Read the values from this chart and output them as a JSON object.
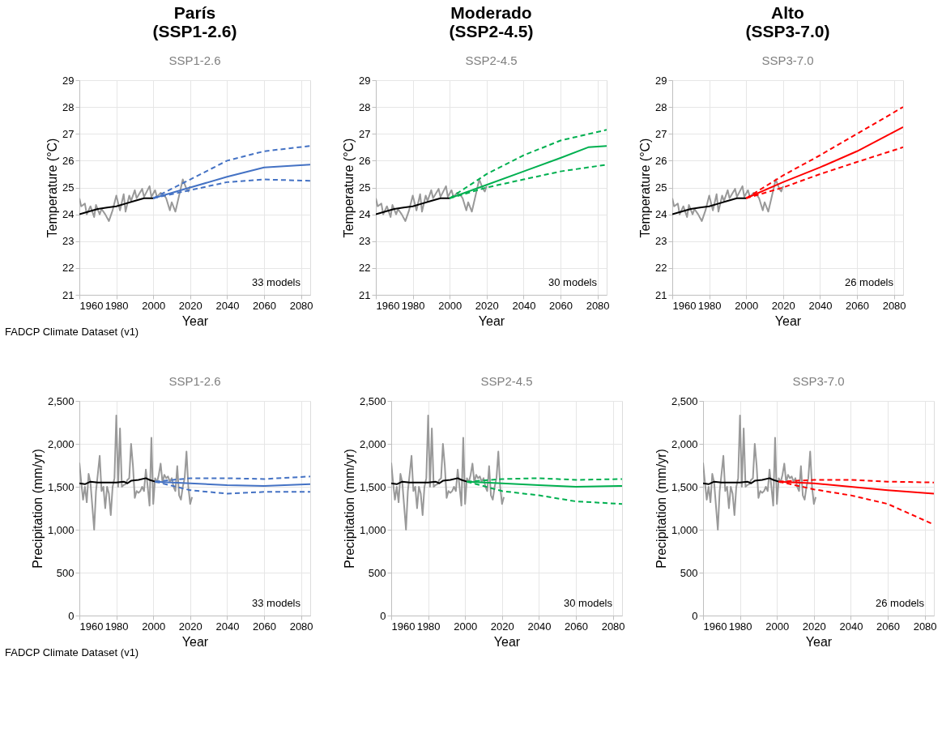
{
  "chart_data": [
    {
      "type": "line",
      "title": "París\n(SSP1-2.6)",
      "subtitle": "SSP1-2.6",
      "xlabel": "Year",
      "ylabel": "Temperature (°C)",
      "xlim": [
        1960,
        2085
      ],
      "xticks": [
        1960,
        1980,
        2000,
        2020,
        2040,
        2060,
        2080
      ],
      "ylim": [
        21,
        29
      ],
      "yticks": [
        21,
        22,
        23,
        24,
        25,
        26,
        27,
        28,
        29
      ],
      "grid": true,
      "legend": false,
      "annotations": [
        "33 models",
        "FADCP Climate Dataset (v1)"
      ],
      "series": [
        {
          "color": "#999999",
          "line_style": "solid",
          "x": [
            1960,
            1961,
            1963,
            1964,
            1966,
            1968,
            1969,
            1971,
            1972,
            1974,
            1976,
            1978,
            1980,
            1982,
            1984,
            1985,
            1987,
            1988,
            1990,
            1991,
            1994,
            1995,
            1998,
            1999,
            2001,
            2002,
            2004,
            2006,
            2007,
            2009,
            2010,
            2012,
            2014,
            2016,
            2018,
            2019,
            2020
          ],
          "values": [
            24.6,
            24.3,
            24.4,
            24.0,
            24.3,
            23.9,
            24.35,
            24.0,
            24.2,
            24.0,
            23.75,
            24.15,
            24.7,
            24.15,
            24.75,
            24.1,
            24.7,
            24.5,
            24.9,
            24.6,
            24.95,
            24.65,
            25.05,
            24.65,
            24.9,
            24.65,
            24.8,
            24.7,
            24.6,
            24.15,
            24.45,
            24.1,
            24.7,
            25.3,
            24.95,
            24.85,
            25.05
          ]
        },
        {
          "color": "#000000",
          "line_style": "solid",
          "x": [
            1960,
            1965,
            1970,
            1975,
            1980,
            1985,
            1990,
            1995,
            2000
          ],
          "values": [
            24.0,
            24.1,
            24.2,
            24.25,
            24.3,
            24.4,
            24.5,
            24.6,
            24.6
          ]
        },
        {
          "color": "#4472c4",
          "line_style": "solid",
          "x": [
            2000,
            2020,
            2040,
            2060,
            2085
          ],
          "values": [
            24.6,
            25.0,
            25.4,
            25.75,
            25.85
          ]
        },
        {
          "color": "#4472c4",
          "line_style": "dashed",
          "x": [
            2000,
            2020,
            2040,
            2060,
            2085
          ],
          "values": [
            24.6,
            25.3,
            26.0,
            26.35,
            26.55
          ]
        },
        {
          "color": "#4472c4",
          "line_style": "dashed",
          "x": [
            2000,
            2020,
            2040,
            2060,
            2085
          ],
          "values": [
            24.6,
            24.9,
            25.2,
            25.3,
            25.25
          ]
        }
      ]
    },
    {
      "type": "line",
      "title": "Moderado\n(SSP2-4.5)",
      "subtitle": "SSP2-4.5",
      "xlabel": "Year",
      "ylabel": "Temperature (°C)",
      "xlim": [
        1960,
        2085
      ],
      "xticks": [
        1960,
        1980,
        2000,
        2020,
        2040,
        2060,
        2080
      ],
      "ylim": [
        21,
        29
      ],
      "yticks": [
        21,
        22,
        23,
        24,
        25,
        26,
        27,
        28,
        29
      ],
      "grid": true,
      "legend": false,
      "annotations": [
        "30 models"
      ],
      "series": [
        {
          "color": "#999999",
          "line_style": "solid",
          "x": [
            1960,
            1961,
            1963,
            1964,
            1966,
            1968,
            1969,
            1971,
            1972,
            1974,
            1976,
            1978,
            1980,
            1982,
            1984,
            1985,
            1987,
            1988,
            1990,
            1991,
            1994,
            1995,
            1998,
            1999,
            2001,
            2002,
            2004,
            2006,
            2007,
            2009,
            2010,
            2012,
            2014,
            2016,
            2018,
            2019,
            2020
          ],
          "values": [
            24.6,
            24.3,
            24.4,
            24.0,
            24.3,
            23.9,
            24.35,
            24.0,
            24.2,
            24.0,
            23.75,
            24.15,
            24.7,
            24.15,
            24.75,
            24.1,
            24.7,
            24.5,
            24.9,
            24.6,
            24.95,
            24.65,
            25.05,
            24.65,
            24.9,
            24.65,
            24.8,
            24.7,
            24.6,
            24.15,
            24.45,
            24.1,
            24.7,
            25.3,
            24.95,
            24.85,
            25.05
          ]
        },
        {
          "color": "#000000",
          "line_style": "solid",
          "x": [
            1960,
            1965,
            1970,
            1975,
            1980,
            1985,
            1990,
            1995,
            2000
          ],
          "values": [
            24.0,
            24.1,
            24.2,
            24.25,
            24.3,
            24.4,
            24.5,
            24.6,
            24.6
          ]
        },
        {
          "color": "#00b050",
          "line_style": "solid",
          "x": [
            2000,
            2020,
            2040,
            2060,
            2075,
            2085
          ],
          "values": [
            24.6,
            25.1,
            25.6,
            26.1,
            26.5,
            26.55
          ]
        },
        {
          "color": "#00b050",
          "line_style": "dashed",
          "x": [
            2000,
            2020,
            2040,
            2060,
            2085
          ],
          "values": [
            24.6,
            25.5,
            26.2,
            26.75,
            27.15
          ]
        },
        {
          "color": "#00b050",
          "line_style": "dashed",
          "x": [
            2000,
            2020,
            2040,
            2060,
            2085
          ],
          "values": [
            24.6,
            25.0,
            25.3,
            25.6,
            25.85
          ]
        }
      ]
    },
    {
      "type": "line",
      "title": "Alto\n(SSP3-7.0)",
      "subtitle": "SSP3-7.0",
      "xlabel": "Year",
      "ylabel": "Temperature (°C)",
      "xlim": [
        1960,
        2085
      ],
      "xticks": [
        1960,
        1980,
        2000,
        2020,
        2040,
        2060,
        2080
      ],
      "ylim": [
        21,
        29
      ],
      "yticks": [
        21,
        22,
        23,
        24,
        25,
        26,
        27,
        28,
        29
      ],
      "grid": true,
      "legend": false,
      "annotations": [
        "26 models"
      ],
      "series": [
        {
          "color": "#999999",
          "line_style": "solid",
          "x": [
            1960,
            1961,
            1963,
            1964,
            1966,
            1968,
            1969,
            1971,
            1972,
            1974,
            1976,
            1978,
            1980,
            1982,
            1984,
            1985,
            1987,
            1988,
            1990,
            1991,
            1994,
            1995,
            1998,
            1999,
            2001,
            2002,
            2004,
            2006,
            2007,
            2009,
            2010,
            2012,
            2014,
            2016,
            2018,
            2019,
            2020
          ],
          "values": [
            24.6,
            24.3,
            24.4,
            24.0,
            24.3,
            23.9,
            24.35,
            24.0,
            24.2,
            24.0,
            23.75,
            24.15,
            24.7,
            24.15,
            24.75,
            24.1,
            24.7,
            24.5,
            24.9,
            24.6,
            24.95,
            24.65,
            25.05,
            24.65,
            24.9,
            24.65,
            24.8,
            24.7,
            24.6,
            24.15,
            24.45,
            24.1,
            24.7,
            25.3,
            24.95,
            24.85,
            25.05
          ]
        },
        {
          "color": "#000000",
          "line_style": "solid",
          "x": [
            1960,
            1965,
            1970,
            1975,
            1980,
            1985,
            1990,
            1995,
            2000
          ],
          "values": [
            24.0,
            24.1,
            24.2,
            24.25,
            24.3,
            24.4,
            24.5,
            24.6,
            24.6
          ]
        },
        {
          "color": "#ff0000",
          "line_style": "solid",
          "x": [
            2000,
            2020,
            2040,
            2060,
            2085
          ],
          "values": [
            24.6,
            25.2,
            25.75,
            26.35,
            27.25
          ]
        },
        {
          "color": "#ff0000",
          "line_style": "dashed",
          "x": [
            2000,
            2020,
            2040,
            2060,
            2085
          ],
          "values": [
            24.6,
            25.45,
            26.2,
            27.0,
            28.0
          ]
        },
        {
          "color": "#ff0000",
          "line_style": "dashed",
          "x": [
            2000,
            2020,
            2040,
            2060,
            2085
          ],
          "values": [
            24.6,
            25.0,
            25.5,
            25.95,
            26.5
          ]
        }
      ]
    },
    {
      "type": "line",
      "title": "SSP1-2.6",
      "xlabel": "Year",
      "ylabel": "Precipitation (mm/yr)",
      "xlim": [
        1960,
        2085
      ],
      "xticks": [
        1960,
        1980,
        2000,
        2020,
        2040,
        2060,
        2080
      ],
      "ylim": [
        0,
        2500
      ],
      "yticks": [
        0,
        500,
        {
          "value": 1000,
          "label": "1,000"
        },
        {
          "value": 1500,
          "label": "1,500"
        },
        {
          "value": 2000,
          "label": "2,000"
        },
        {
          "value": 2500,
          "label": "2,500"
        }
      ],
      "grid": true,
      "legend": false,
      "annotations": [
        "33 models",
        "FADCP Climate Dataset (v1)"
      ],
      "series": [
        {
          "color": "#999999",
          "line_style": "solid",
          "x": [
            1960,
            1961,
            1962,
            1963,
            1964,
            1965,
            1966,
            1968,
            1969,
            1970,
            1971,
            1972,
            1973,
            1974,
            1975,
            1976,
            1977,
            1978,
            1979,
            1980,
            1981,
            1982,
            1983,
            1984,
            1985,
            1986,
            1987,
            1988,
            1989,
            1990,
            1991,
            1992,
            1993,
            1994,
            1995,
            1996,
            1997,
            1998,
            1999,
            2000,
            2001,
            2002,
            2003,
            2004,
            2005,
            2006,
            2007,
            2008,
            2009,
            2010,
            2011,
            2012,
            2013,
            2014,
            2015,
            2016,
            2017,
            2018,
            2019,
            2020,
            2021
          ],
          "values": [
            1780,
            1550,
            1350,
            1500,
            1320,
            1650,
            1550,
            1000,
            1450,
            1650,
            1860,
            1450,
            1500,
            1250,
            1500,
            1420,
            1170,
            1500,
            1600,
            2330,
            1500,
            2180,
            1500,
            1520,
            1530,
            1580,
            1600,
            2000,
            1750,
            1370,
            1450,
            1430,
            1450,
            1500,
            1450,
            1700,
            1500,
            1280,
            2070,
            1300,
            1600,
            1550,
            1640,
            1770,
            1550,
            1640,
            1600,
            1620,
            1560,
            1600,
            1500,
            1450,
            1740,
            1400,
            1350,
            1500,
            1600,
            1910,
            1500,
            1300,
            1380
          ]
        },
        {
          "color": "#000000",
          "line_style": "solid",
          "x": [
            1960,
            1963,
            1966,
            1970,
            1975,
            1980,
            1984,
            1986,
            1988,
            1992,
            1996,
            1998,
            2001
          ],
          "values": [
            1540,
            1530,
            1560,
            1550,
            1550,
            1550,
            1560,
            1540,
            1570,
            1580,
            1600,
            1580,
            1560
          ]
        },
        {
          "color": "#4472c4",
          "line_style": "solid",
          "x": [
            2001,
            2020,
            2040,
            2060,
            2085
          ],
          "values": [
            1560,
            1540,
            1520,
            1510,
            1530
          ]
        },
        {
          "color": "#4472c4",
          "line_style": "dashed",
          "x": [
            2001,
            2020,
            2040,
            2060,
            2085
          ],
          "values": [
            1560,
            1600,
            1600,
            1590,
            1620
          ]
        },
        {
          "color": "#4472c4",
          "line_style": "dashed",
          "x": [
            2001,
            2020,
            2040,
            2060,
            2085
          ],
          "values": [
            1560,
            1460,
            1420,
            1440,
            1440
          ]
        }
      ]
    },
    {
      "type": "line",
      "title": "SSP2-4.5",
      "xlabel": "Year",
      "ylabel": "Precipitation (mm/yr)",
      "xlim": [
        1960,
        2085
      ],
      "xticks": [
        1960,
        1980,
        2000,
        2020,
        2040,
        2060,
        2080
      ],
      "ylim": [
        0,
        2500
      ],
      "yticks": [
        0,
        500,
        {
          "value": 1000,
          "label": "1,000"
        },
        {
          "value": 1500,
          "label": "1,500"
        },
        {
          "value": 2000,
          "label": "2,000"
        },
        {
          "value": 2500,
          "label": "2,500"
        }
      ],
      "grid": true,
      "legend": false,
      "annotations": [
        "30 models"
      ],
      "series": [
        {
          "color": "#999999",
          "line_style": "solid",
          "x": [
            1960,
            1961,
            1962,
            1963,
            1964,
            1965,
            1966,
            1968,
            1969,
            1970,
            1971,
            1972,
            1973,
            1974,
            1975,
            1976,
            1977,
            1978,
            1979,
            1980,
            1981,
            1982,
            1983,
            1984,
            1985,
            1986,
            1987,
            1988,
            1989,
            1990,
            1991,
            1992,
            1993,
            1994,
            1995,
            1996,
            1997,
            1998,
            1999,
            2000,
            2001,
            2002,
            2003,
            2004,
            2005,
            2006,
            2007,
            2008,
            2009,
            2010,
            2011,
            2012,
            2013,
            2014,
            2015,
            2016,
            2017,
            2018,
            2019,
            2020,
            2021
          ],
          "values": [
            1780,
            1550,
            1350,
            1500,
            1320,
            1650,
            1550,
            1000,
            1450,
            1650,
            1860,
            1450,
            1500,
            1250,
            1500,
            1420,
            1170,
            1500,
            1600,
            2330,
            1500,
            2180,
            1500,
            1520,
            1530,
            1580,
            1600,
            2000,
            1750,
            1370,
            1450,
            1430,
            1450,
            1500,
            1450,
            1700,
            1500,
            1280,
            2070,
            1300,
            1600,
            1550,
            1640,
            1770,
            1550,
            1640,
            1600,
            1620,
            1560,
            1600,
            1500,
            1450,
            1740,
            1400,
            1350,
            1500,
            1600,
            1910,
            1500,
            1300,
            1380
          ]
        },
        {
          "color": "#000000",
          "line_style": "solid",
          "x": [
            1960,
            1963,
            1966,
            1970,
            1975,
            1980,
            1984,
            1986,
            1988,
            1992,
            1996,
            1998,
            2001
          ],
          "values": [
            1540,
            1530,
            1560,
            1550,
            1550,
            1550,
            1560,
            1540,
            1570,
            1580,
            1600,
            1580,
            1560
          ]
        },
        {
          "color": "#00b050",
          "line_style": "solid",
          "x": [
            2001,
            2020,
            2040,
            2060,
            2085
          ],
          "values": [
            1560,
            1540,
            1520,
            1500,
            1510
          ]
        },
        {
          "color": "#00b050",
          "line_style": "dashed",
          "x": [
            2001,
            2020,
            2040,
            2060,
            2085
          ],
          "values": [
            1560,
            1590,
            1600,
            1580,
            1590
          ]
        },
        {
          "color": "#00b050",
          "line_style": "dashed",
          "x": [
            2001,
            2020,
            2040,
            2060,
            2085
          ],
          "values": [
            1560,
            1450,
            1400,
            1330,
            1300
          ]
        }
      ]
    },
    {
      "type": "line",
      "title": "SSP3-7.0",
      "xlabel": "Year",
      "ylabel": "Precipitation (mm/yr)",
      "xlim": [
        1960,
        2085
      ],
      "xticks": [
        1960,
        1980,
        2000,
        2020,
        2040,
        2060,
        2080
      ],
      "ylim": [
        0,
        2500
      ],
      "yticks": [
        0,
        500,
        {
          "value": 1000,
          "label": "1,000"
        },
        {
          "value": 1500,
          "label": "1,500"
        },
        {
          "value": 2000,
          "label": "2,000"
        },
        {
          "value": 2500,
          "label": "2,500"
        }
      ],
      "grid": true,
      "legend": false,
      "annotations": [
        "26 models"
      ],
      "series": [
        {
          "color": "#999999",
          "line_style": "solid",
          "x": [
            1960,
            1961,
            1962,
            1963,
            1964,
            1965,
            1966,
            1968,
            1969,
            1970,
            1971,
            1972,
            1973,
            1974,
            1975,
            1976,
            1977,
            1978,
            1979,
            1980,
            1981,
            1982,
            1983,
            1984,
            1985,
            1986,
            1987,
            1988,
            1989,
            1990,
            1991,
            1992,
            1993,
            1994,
            1995,
            1996,
            1997,
            1998,
            1999,
            2000,
            2001,
            2002,
            2003,
            2004,
            2005,
            2006,
            2007,
            2008,
            2009,
            2010,
            2011,
            2012,
            2013,
            2014,
            2015,
            2016,
            2017,
            2018,
            2019,
            2020,
            2021
          ],
          "values": [
            1780,
            1550,
            1350,
            1500,
            1320,
            1650,
            1550,
            1000,
            1450,
            1650,
            1860,
            1450,
            1500,
            1250,
            1500,
            1420,
            1170,
            1500,
            1600,
            2330,
            1500,
            2180,
            1500,
            1520,
            1530,
            1580,
            1600,
            2000,
            1750,
            1370,
            1450,
            1430,
            1450,
            1500,
            1450,
            1700,
            1500,
            1280,
            2070,
            1300,
            1600,
            1550,
            1640,
            1770,
            1550,
            1640,
            1600,
            1620,
            1560,
            1600,
            1500,
            1450,
            1740,
            1400,
            1350,
            1500,
            1600,
            1910,
            1500,
            1300,
            1380
          ]
        },
        {
          "color": "#000000",
          "line_style": "solid",
          "x": [
            1960,
            1963,
            1966,
            1970,
            1975,
            1980,
            1984,
            1986,
            1988,
            1992,
            1996,
            1998,
            2001
          ],
          "values": [
            1540,
            1530,
            1560,
            1550,
            1550,
            1550,
            1560,
            1540,
            1570,
            1580,
            1600,
            1580,
            1560
          ]
        },
        {
          "color": "#ff0000",
          "line_style": "solid",
          "x": [
            2001,
            2020,
            2040,
            2060,
            2085
          ],
          "values": [
            1560,
            1540,
            1500,
            1460,
            1420
          ]
        },
        {
          "color": "#ff0000",
          "line_style": "dashed",
          "x": [
            2001,
            2020,
            2040,
            2060,
            2085
          ],
          "values": [
            1560,
            1580,
            1580,
            1560,
            1550
          ]
        },
        {
          "color": "#ff0000",
          "line_style": "dashed",
          "x": [
            2001,
            2020,
            2040,
            2060,
            2085
          ],
          "values": [
            1560,
            1470,
            1400,
            1300,
            1060
          ]
        }
      ]
    }
  ]
}
